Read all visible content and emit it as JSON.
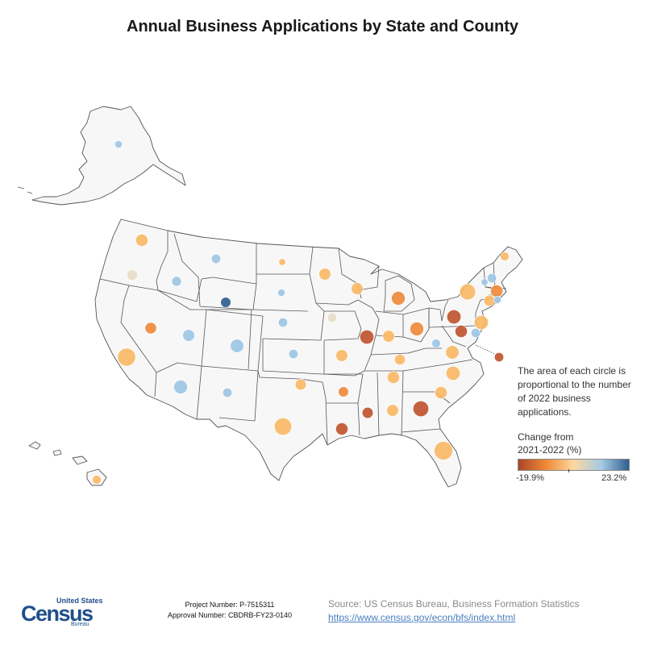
{
  "title": "Annual Business Applications by State and County",
  "legend": {
    "note": "The area of each circle is proportional to the number of 2022 business applications.",
    "title_line1": "Change from",
    "title_line2": "2021-2022 (%)",
    "min_label": "-19.9%",
    "max_label": "23.2%",
    "gradient_colors": [
      "#a8462a",
      "#f08a36",
      "#fdd7a0",
      "#a6cbe6",
      "#2f5f8f"
    ]
  },
  "colors": {
    "land_fill": "#f7f7f7",
    "border": "#555555",
    "dark_orange": "#bf5530",
    "orange": "#ee8a3c",
    "light_orange": "#f9b866",
    "pale": "#e8dcc8",
    "light_blue": "#9dc6e4",
    "dark_blue": "#2f5f8f"
  },
  "states": [
    {
      "name": "Alaska",
      "color": "light_blue",
      "size": 0.6
    },
    {
      "name": "Washington",
      "color": "light_orange",
      "size": 1.6
    },
    {
      "name": "Oregon",
      "color": "pale",
      "size": 1.2
    },
    {
      "name": "California",
      "color": "light_orange",
      "size": 3.4
    },
    {
      "name": "Nevada",
      "color": "orange",
      "size": 1.4
    },
    {
      "name": "Idaho",
      "color": "light_blue",
      "size": 1.0
    },
    {
      "name": "Montana",
      "color": "light_blue",
      "size": 0.9
    },
    {
      "name": "Wyoming",
      "color": "dark_blue",
      "size": 1.1
    },
    {
      "name": "Utah",
      "color": "light_blue",
      "size": 1.5
    },
    {
      "name": "Colorado",
      "color": "light_blue",
      "size": 1.9
    },
    {
      "name": "Arizona",
      "color": "light_blue",
      "size": 2.0
    },
    {
      "name": "New Mexico",
      "color": "light_blue",
      "size": 0.9
    },
    {
      "name": "North Dakota",
      "color": "light_orange",
      "size": 0.5
    },
    {
      "name": "South Dakota",
      "color": "light_blue",
      "size": 0.6
    },
    {
      "name": "Nebraska",
      "color": "light_blue",
      "size": 0.9
    },
    {
      "name": "Kansas",
      "color": "light_blue",
      "size": 0.9
    },
    {
      "name": "Oklahoma",
      "color": "light_orange",
      "size": 1.3
    },
    {
      "name": "Texas",
      "color": "light_orange",
      "size": 3.2
    },
    {
      "name": "Minnesota",
      "color": "light_orange",
      "size": 1.5
    },
    {
      "name": "Iowa",
      "color": "pale",
      "size": 0.9
    },
    {
      "name": "Missouri",
      "color": "light_orange",
      "size": 1.5
    },
    {
      "name": "Arkansas",
      "color": "orange",
      "size": 1.1
    },
    {
      "name": "Louisiana",
      "color": "dark_orange",
      "size": 1.6
    },
    {
      "name": "Wisconsin",
      "color": "light_orange",
      "size": 1.5
    },
    {
      "name": "Illinois",
      "color": "dark_orange",
      "size": 2.1
    },
    {
      "name": "Michigan",
      "color": "orange",
      "size": 2.0
    },
    {
      "name": "Indiana",
      "color": "light_orange",
      "size": 1.5
    },
    {
      "name": "Ohio",
      "color": "orange",
      "size": 2.0
    },
    {
      "name": "Kentucky",
      "color": "light_orange",
      "size": 1.2
    },
    {
      "name": "Tennessee",
      "color": "light_orange",
      "size": 1.6
    },
    {
      "name": "Mississippi",
      "color": "dark_orange",
      "size": 1.3
    },
    {
      "name": "Alabama",
      "color": "light_orange",
      "size": 1.5
    },
    {
      "name": "Georgia",
      "color": "dark_orange",
      "size": 2.6
    },
    {
      "name": "Florida",
      "color": "light_orange",
      "size": 3.6
    },
    {
      "name": "South Carolina",
      "color": "light_orange",
      "size": 1.6
    },
    {
      "name": "North Carolina",
      "color": "light_orange",
      "size": 2.1
    },
    {
      "name": "Virginia",
      "color": "light_orange",
      "size": 1.9
    },
    {
      "name": "West Virginia",
      "color": "light_blue",
      "size": 0.8
    },
    {
      "name": "Pennsylvania",
      "color": "dark_orange",
      "size": 2.1
    },
    {
      "name": "New York",
      "color": "light_orange",
      "size": 2.7
    },
    {
      "name": "Maryland",
      "color": "dark_orange",
      "size": 1.6
    },
    {
      "name": "Delaware",
      "color": "light_blue",
      "size": 0.9
    },
    {
      "name": "New Jersey",
      "color": "light_orange",
      "size": 2.1
    },
    {
      "name": "District of Columbia",
      "color": "dark_orange",
      "size": 0.9
    },
    {
      "name": "Connecticut",
      "color": "light_orange",
      "size": 1.3
    },
    {
      "name": "Rhode Island",
      "color": "light_blue",
      "size": 0.6
    },
    {
      "name": "Massachusetts",
      "color": "orange",
      "size": 1.6
    },
    {
      "name": "Vermont",
      "color": "light_blue",
      "size": 0.5
    },
    {
      "name": "New Hampshire",
      "color": "light_blue",
      "size": 0.9
    },
    {
      "name": "Maine",
      "color": "light_orange",
      "size": 0.8
    },
    {
      "name": "Hawaii",
      "color": "light_orange",
      "size": 0.8
    }
  ],
  "footer": {
    "logo_top": "United States",
    "logo_main": "Census",
    "logo_sub": "Bureau",
    "project_number": "Project Number: P-7515311",
    "approval_number": "Approval Number: CBDRB-FY23-0140",
    "source": "Source: US Census Bureau, Business Formation Statistics",
    "url": "https://www.census.gov/econ/bfs/index.html"
  }
}
